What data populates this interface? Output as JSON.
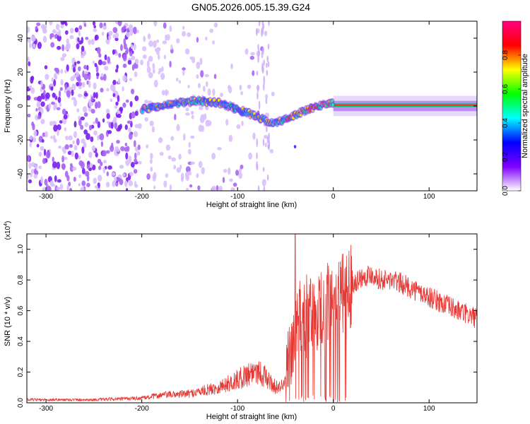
{
  "title": "GN05.2026.005.15.39.G24",
  "chart_data": [
    {
      "type": "heatmap",
      "name": "spectrogram",
      "xlabel": "Height of straight line (km)",
      "ylabel": "Frequency (Hz)",
      "xlim": [
        -320,
        150
      ],
      "ylim": [
        -50,
        50
      ],
      "xticks": [
        -300,
        -200,
        -100,
        0,
        100
      ],
      "xtick_labels": [
        "-300",
        "-200",
        "-100",
        "0",
        "100"
      ],
      "yticks": [
        -40,
        -20,
        0,
        20,
        40
      ],
      "ytick_labels": [
        "-40",
        "-20",
        "0",
        "20",
        "40"
      ],
      "colorbar": {
        "label": "Normalized spectral amplitude",
        "range": [
          0,
          1
        ],
        "ticks": [
          0,
          0.2,
          0.4,
          0.6,
          0.8
        ],
        "tick_labels": [
          "0.0",
          "0.2",
          "0.4",
          "0.6",
          "0.8"
        ],
        "colors": [
          "#ffffff",
          "#7f00ff",
          "#0000ff",
          "#00ffff",
          "#00ff00",
          "#ffff00",
          "#ff0000",
          "#ff0080"
        ]
      },
      "ridge": {
        "x": [
          -200,
          -180,
          -160,
          -140,
          -120,
          -100,
          -80,
          -70,
          -60,
          -50,
          -40,
          -30,
          -20,
          -10,
          0,
          50,
          100,
          150
        ],
        "y": [
          -2,
          0,
          2,
          3,
          2,
          -2,
          -6,
          -9,
          -10,
          -8,
          -5,
          -3,
          -1,
          1,
          2,
          1,
          1,
          0
        ]
      }
    },
    {
      "type": "line",
      "name": "snr",
      "xlabel": "Height of straight line (km)",
      "ylabel": "SNR (10 * v/v)",
      "y_multiplier": "(x10",
      "y_multiplier_exp": "4",
      "y_multiplier_close": ")",
      "xlim": [
        -320,
        150
      ],
      "ylim": [
        0,
        1.1
      ],
      "xticks": [
        -300,
        -200,
        -100,
        0,
        100
      ],
      "xtick_labels": [
        "-300",
        "-200",
        "-100",
        "0",
        "100"
      ],
      "yticks": [
        0,
        0.2,
        0.4,
        0.6,
        0.8,
        1.0
      ],
      "ytick_labels": [
        "0.0",
        "0.2",
        "0.4",
        "0.6",
        "0.8",
        "1.0"
      ],
      "color": "#e53935",
      "envelope": {
        "x": [
          -320,
          -250,
          -200,
          -180,
          -150,
          -120,
          -100,
          -80,
          -60,
          -50,
          -45,
          -40,
          -30,
          -20,
          -10,
          0,
          10,
          20,
          30,
          40,
          50,
          60,
          70,
          90,
          110,
          130,
          150
        ],
        "y": [
          0.02,
          0.02,
          0.03,
          0.05,
          0.06,
          0.1,
          0.15,
          0.22,
          0.1,
          0.12,
          0.25,
          0.5,
          0.55,
          0.6,
          0.62,
          0.65,
          0.7,
          0.78,
          0.82,
          0.84,
          0.8,
          0.8,
          0.78,
          0.72,
          0.66,
          0.6,
          0.55
        ]
      }
    }
  ]
}
